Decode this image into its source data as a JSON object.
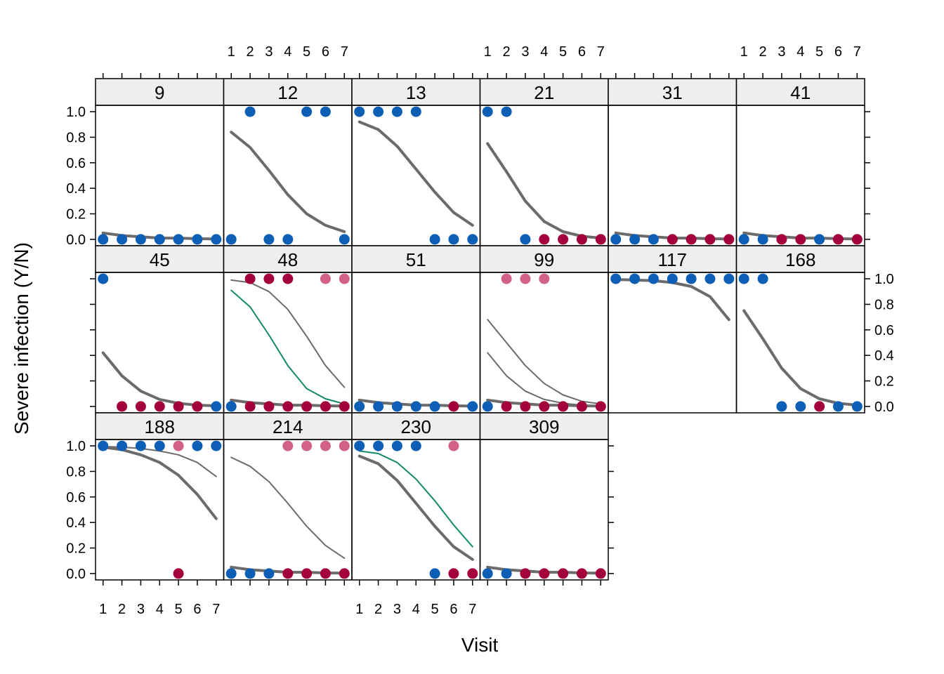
{
  "chart_data": {
    "type": "scatter",
    "xlabel": "Visit",
    "ylabel": "Severe infection (Y/N)",
    "x_ticks": [
      1,
      2,
      3,
      4,
      5,
      6,
      7
    ],
    "y_ticks": [
      "0.0",
      "0.2",
      "0.4",
      "0.6",
      "0.8",
      "1.0"
    ],
    "xlim": [
      0.6,
      7.4
    ],
    "ylim": [
      -0.05,
      1.05
    ],
    "layout": {
      "columns": 6,
      "rows": 3
    },
    "colors": {
      "blue": "#0d5fb6",
      "red": "#a3003c",
      "pale_red": "#c53a67",
      "fit_gray": "#6b6b6b",
      "fit_green": "#13896a",
      "strip": "#eeeeee"
    },
    "panels": [
      {
        "id": "9",
        "row": 0,
        "col": 0,
        "points": [
          [
            1,
            0,
            "blue"
          ],
          [
            2,
            0,
            "blue"
          ],
          [
            3,
            0,
            "blue"
          ],
          [
            4,
            0,
            "blue"
          ],
          [
            5,
            0,
            "blue"
          ],
          [
            6,
            0,
            "blue"
          ],
          [
            7,
            0,
            "blue"
          ]
        ],
        "lines": [
          {
            "color": "gray",
            "width": 4,
            "y": [
              0.05,
              0.03,
              0.02,
              0.01,
              0.01,
              0.005,
              0.003
            ]
          }
        ]
      },
      {
        "id": "12",
        "row": 0,
        "col": 1,
        "points": [
          [
            1,
            0,
            "blue"
          ],
          [
            2,
            1,
            "blue"
          ],
          [
            3,
            0,
            "blue"
          ],
          [
            4,
            0,
            "blue"
          ],
          [
            5,
            1,
            "blue"
          ],
          [
            6,
            1,
            "blue"
          ],
          [
            7,
            0,
            "blue"
          ]
        ],
        "lines": [
          {
            "color": "gray",
            "width": 4,
            "y": [
              0.84,
              0.72,
              0.54,
              0.35,
              0.2,
              0.11,
              0.06
            ]
          }
        ]
      },
      {
        "id": "13",
        "row": 0,
        "col": 2,
        "points": [
          [
            1,
            1,
            "blue"
          ],
          [
            2,
            1,
            "blue"
          ],
          [
            3,
            1,
            "blue"
          ],
          [
            4,
            1,
            "blue"
          ],
          [
            5,
            0,
            "blue"
          ],
          [
            6,
            0,
            "blue"
          ],
          [
            7,
            0,
            "blue"
          ]
        ],
        "lines": [
          {
            "color": "gray",
            "width": 4,
            "y": [
              0.92,
              0.86,
              0.73,
              0.55,
              0.37,
              0.21,
              0.11
            ]
          }
        ]
      },
      {
        "id": "21",
        "row": 0,
        "col": 3,
        "points": [
          [
            1,
            1,
            "blue"
          ],
          [
            2,
            1,
            "blue"
          ],
          [
            3,
            0,
            "blue"
          ],
          [
            4,
            0,
            "red"
          ],
          [
            5,
            0,
            "red"
          ],
          [
            6,
            0,
            "red"
          ],
          [
            7,
            0,
            "red"
          ]
        ],
        "lines": [
          {
            "color": "gray",
            "width": 4,
            "y": [
              0.75,
              0.53,
              0.3,
              0.14,
              0.06,
              0.025,
              0.01
            ]
          }
        ]
      },
      {
        "id": "31",
        "row": 0,
        "col": 4,
        "points": [
          [
            1,
            0,
            "blue"
          ],
          [
            2,
            0,
            "blue"
          ],
          [
            3,
            0,
            "blue"
          ],
          [
            4,
            0,
            "red"
          ],
          [
            5,
            0,
            "red"
          ],
          [
            6,
            0,
            "red"
          ],
          [
            7,
            0,
            "red"
          ]
        ],
        "lines": [
          {
            "color": "gray",
            "width": 4,
            "y": [
              0.05,
              0.03,
              0.02,
              0.01,
              0.01,
              0.005,
              0.003
            ]
          }
        ]
      },
      {
        "id": "41",
        "row": 0,
        "col": 5,
        "points": [
          [
            1,
            0,
            "blue"
          ],
          [
            2,
            0,
            "blue"
          ],
          [
            3,
            0,
            "red"
          ],
          [
            4,
            0,
            "red"
          ],
          [
            5,
            0,
            "blue"
          ],
          [
            6,
            0,
            "red"
          ],
          [
            7,
            0,
            "red"
          ]
        ],
        "lines": [
          {
            "color": "gray",
            "width": 4,
            "y": [
              0.05,
              0.03,
              0.02,
              0.01,
              0.01,
              0.005,
              0.003
            ]
          }
        ]
      },
      {
        "id": "45",
        "row": 1,
        "col": 0,
        "points": [
          [
            1,
            1,
            "blue"
          ],
          [
            2,
            0,
            "red"
          ],
          [
            3,
            0,
            "red"
          ],
          [
            4,
            0,
            "red"
          ],
          [
            5,
            0,
            "red"
          ],
          [
            6,
            0,
            "red"
          ],
          [
            7,
            0,
            "blue"
          ]
        ],
        "lines": [
          {
            "color": "gray",
            "width": 4,
            "y": [
              0.42,
              0.24,
              0.12,
              0.055,
              0.025,
              0.01,
              0.005
            ]
          }
        ]
      },
      {
        "id": "48",
        "row": 1,
        "col": 1,
        "points": [
          [
            1,
            0,
            "blue"
          ],
          [
            2,
            1,
            "red"
          ],
          [
            2,
            0,
            "red"
          ],
          [
            3,
            1,
            "red"
          ],
          [
            3,
            0,
            "red"
          ],
          [
            4,
            1,
            "red"
          ],
          [
            4,
            0,
            "red"
          ],
          [
            5,
            0,
            "red"
          ],
          [
            6,
            1,
            "pale_red"
          ],
          [
            6,
            0,
            "red"
          ],
          [
            7,
            1,
            "pale_red"
          ],
          [
            7,
            0,
            "red"
          ]
        ],
        "lines": [
          {
            "color": "gray",
            "width": 4,
            "y": [
              0.05,
              0.03,
              0.02,
              0.01,
              0.01,
              0.005,
              0.003
            ]
          },
          {
            "color": "gray",
            "width": 2,
            "y": [
              0.99,
              0.97,
              0.9,
              0.76,
              0.55,
              0.32,
              0.15
            ]
          },
          {
            "color": "green",
            "width": 2,
            "y": [
              0.91,
              0.78,
              0.56,
              0.32,
              0.14,
              0.06,
              0.02
            ]
          }
        ]
      },
      {
        "id": "51",
        "row": 1,
        "col": 2,
        "points": [
          [
            1,
            0,
            "blue"
          ],
          [
            2,
            0,
            "blue"
          ],
          [
            3,
            0,
            "blue"
          ],
          [
            4,
            0,
            "blue"
          ],
          [
            5,
            0,
            "blue"
          ],
          [
            6,
            0,
            "red"
          ],
          [
            7,
            0,
            "blue"
          ]
        ],
        "lines": [
          {
            "color": "gray",
            "width": 4,
            "y": [
              0.05,
              0.03,
              0.02,
              0.01,
              0.01,
              0.005,
              0.003
            ]
          }
        ]
      },
      {
        "id": "99",
        "row": 1,
        "col": 3,
        "points": [
          [
            1,
            0,
            "blue"
          ],
          [
            2,
            1,
            "pale_red"
          ],
          [
            2,
            0,
            "red"
          ],
          [
            3,
            1,
            "pale_red"
          ],
          [
            3,
            0,
            "red"
          ],
          [
            4,
            1,
            "pale_red"
          ],
          [
            4,
            0,
            "red"
          ],
          [
            5,
            0,
            "red"
          ],
          [
            6,
            0,
            "red"
          ],
          [
            7,
            0,
            "red"
          ]
        ],
        "lines": [
          {
            "color": "gray",
            "width": 4,
            "y": [
              0.05,
              0.03,
              0.02,
              0.01,
              0.01,
              0.005,
              0.003
            ]
          },
          {
            "color": "gray",
            "width": 2,
            "y": [
              0.68,
              0.5,
              0.32,
              0.18,
              0.09,
              0.04,
              0.02
            ]
          },
          {
            "color": "gray",
            "width": 2,
            "y": [
              0.42,
              0.24,
              0.12,
              0.055,
              0.025,
              0.01,
              0.005
            ]
          }
        ]
      },
      {
        "id": "117",
        "row": 1,
        "col": 4,
        "points": [
          [
            1,
            1,
            "blue"
          ],
          [
            2,
            1,
            "blue"
          ],
          [
            3,
            1,
            "blue"
          ],
          [
            4,
            1,
            "blue"
          ],
          [
            5,
            1,
            "blue"
          ],
          [
            6,
            1,
            "blue"
          ],
          [
            7,
            1,
            "blue"
          ]
        ],
        "lines": [
          {
            "color": "gray",
            "width": 4,
            "y": [
              0.995,
              0.99,
              0.985,
              0.97,
              0.94,
              0.86,
              0.68
            ]
          }
        ]
      },
      {
        "id": "168",
        "row": 1,
        "col": 5,
        "points": [
          [
            1,
            1,
            "blue"
          ],
          [
            2,
            1,
            "blue"
          ],
          [
            3,
            0,
            "blue"
          ],
          [
            4,
            0,
            "blue"
          ],
          [
            5,
            0,
            "red"
          ],
          [
            6,
            0,
            "blue"
          ],
          [
            7,
            0,
            "blue"
          ]
        ],
        "lines": [
          {
            "color": "gray",
            "width": 4,
            "y": [
              0.75,
              0.53,
              0.3,
              0.14,
              0.06,
              0.025,
              0.01
            ]
          }
        ]
      },
      {
        "id": "188",
        "row": 2,
        "col": 0,
        "points": [
          [
            1,
            1,
            "blue"
          ],
          [
            2,
            1,
            "blue"
          ],
          [
            3,
            1,
            "blue"
          ],
          [
            4,
            1,
            "blue"
          ],
          [
            5,
            1,
            "pale_red"
          ],
          [
            5,
            0,
            "red"
          ],
          [
            6,
            1,
            "blue"
          ],
          [
            7,
            1,
            "blue"
          ]
        ],
        "lines": [
          {
            "color": "gray",
            "width": 4,
            "y": [
              0.99,
              0.97,
              0.93,
              0.87,
              0.77,
              0.62,
              0.43
            ]
          },
          {
            "color": "gray",
            "width": 2,
            "y": [
              0.995,
              0.99,
              0.98,
              0.96,
              0.93,
              0.87,
              0.76
            ]
          }
        ]
      },
      {
        "id": "214",
        "row": 2,
        "col": 1,
        "points": [
          [
            1,
            0,
            "blue"
          ],
          [
            2,
            0,
            "blue"
          ],
          [
            3,
            0,
            "blue"
          ],
          [
            4,
            1,
            "pale_red"
          ],
          [
            4,
            0,
            "red"
          ],
          [
            5,
            1,
            "pale_red"
          ],
          [
            5,
            0,
            "red"
          ],
          [
            6,
            1,
            "pale_red"
          ],
          [
            6,
            0,
            "red"
          ],
          [
            7,
            1,
            "pale_red"
          ],
          [
            7,
            0,
            "red"
          ]
        ],
        "lines": [
          {
            "color": "gray",
            "width": 4,
            "y": [
              0.05,
              0.03,
              0.02,
              0.01,
              0.01,
              0.005,
              0.003
            ]
          },
          {
            "color": "gray",
            "width": 2,
            "y": [
              0.91,
              0.84,
              0.72,
              0.55,
              0.37,
              0.22,
              0.12
            ]
          }
        ]
      },
      {
        "id": "230",
        "row": 2,
        "col": 2,
        "points": [
          [
            1,
            1,
            "blue"
          ],
          [
            2,
            1,
            "blue"
          ],
          [
            3,
            1,
            "blue"
          ],
          [
            4,
            1,
            "blue"
          ],
          [
            5,
            0,
            "blue"
          ],
          [
            6,
            1,
            "pale_red"
          ],
          [
            6,
            0,
            "red"
          ],
          [
            7,
            0,
            "red"
          ]
        ],
        "lines": [
          {
            "color": "gray",
            "width": 4,
            "y": [
              0.92,
              0.86,
              0.73,
              0.55,
              0.37,
              0.21,
              0.11
            ]
          },
          {
            "color": "green",
            "width": 2,
            "y": [
              0.96,
              0.94,
              0.87,
              0.74,
              0.57,
              0.38,
              0.21
            ]
          }
        ]
      },
      {
        "id": "309",
        "row": 2,
        "col": 3,
        "points": [
          [
            1,
            0,
            "blue"
          ],
          [
            2,
            0,
            "blue"
          ],
          [
            3,
            0,
            "red"
          ],
          [
            4,
            0,
            "red"
          ],
          [
            5,
            0,
            "red"
          ],
          [
            6,
            0,
            "red"
          ],
          [
            7,
            0,
            "red"
          ]
        ],
        "lines": [
          {
            "color": "gray",
            "width": 4,
            "y": [
              0.05,
              0.03,
              0.02,
              0.01,
              0.01,
              0.005,
              0.003
            ]
          }
        ]
      }
    ]
  }
}
